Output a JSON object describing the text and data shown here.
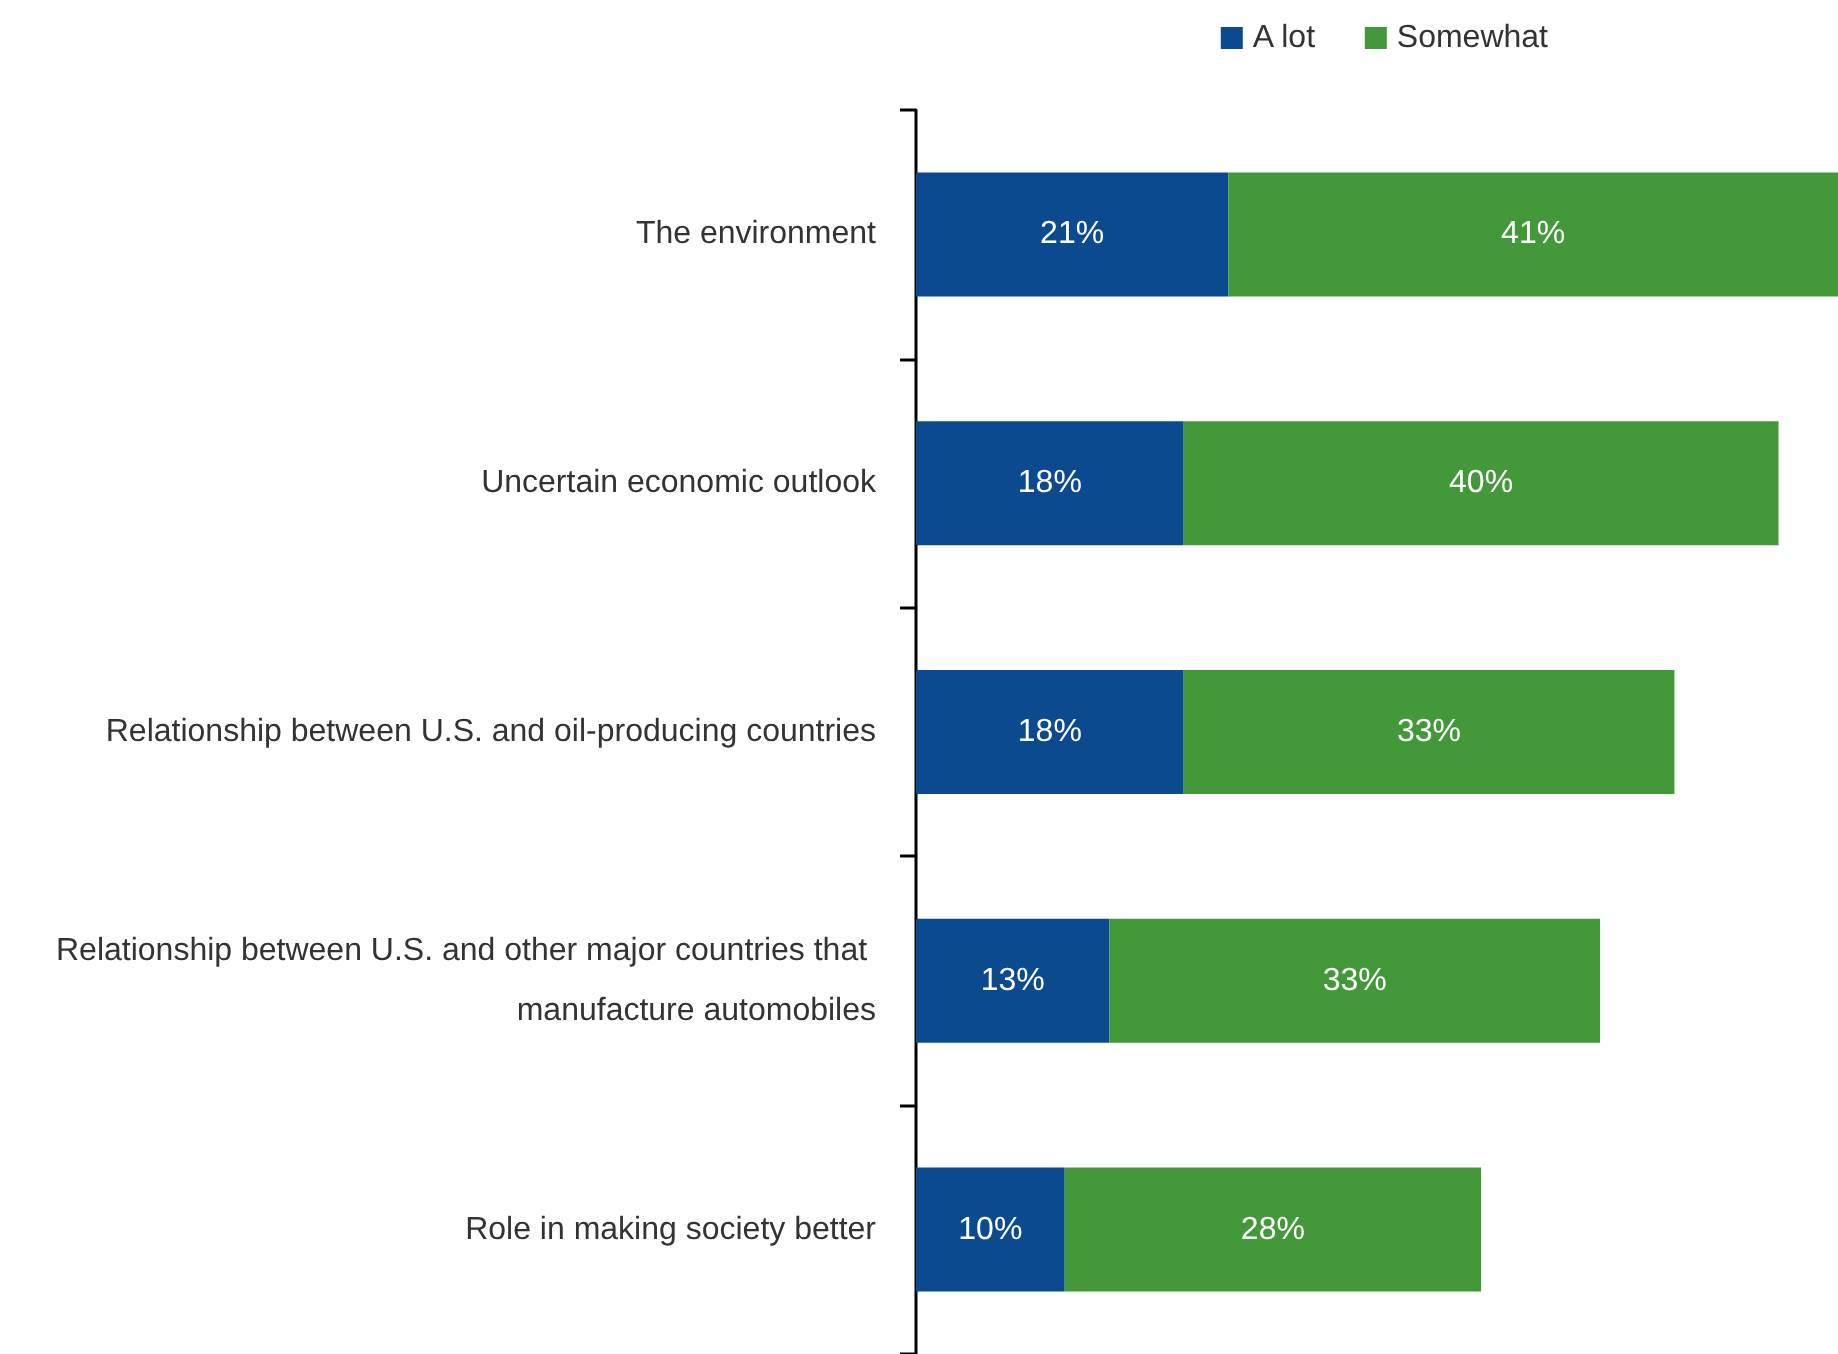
{
  "chart_data": {
    "type": "bar",
    "orientation": "horizontal",
    "stacked": true,
    "legend": "top right",
    "categories": [
      "The environment",
      "Uncertain economic outlook",
      "Relationship between U.S. and oil-producing countries",
      "Relationship between U.S. and other major countries that manufacture automobiles",
      "Role in making society better"
    ],
    "series": [
      {
        "name": "A lot",
        "color": "#0b4a8f",
        "values": [
          21,
          18,
          18,
          13,
          10
        ],
        "value_labels": [
          "21%",
          "18%",
          "18%",
          "13%",
          "10%"
        ]
      },
      {
        "name": "Somewhat",
        "color": "#43993a",
        "values": [
          41,
          40,
          33,
          33,
          28
        ],
        "value_labels": [
          "41%",
          "40%",
          "33%",
          "33%",
          "28%"
        ]
      }
    ]
  }
}
